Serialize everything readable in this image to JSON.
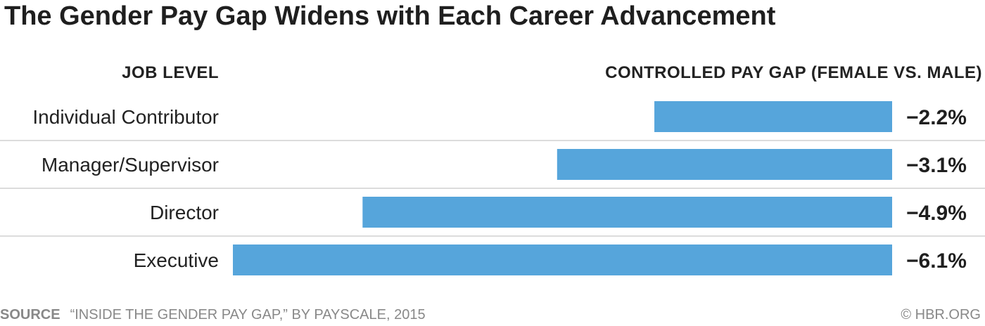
{
  "title": "The Gender Pay Gap Widens with Each Career Advancement",
  "headers": {
    "left": "JOB LEVEL",
    "right": "CONTROLLED PAY GAP (FEMALE VS. MALE)"
  },
  "footer": {
    "source_label": "SOURCE",
    "source_text": "“INSIDE THE GENDER PAY GAP,” BY PAYSCALE, 2015",
    "credit": "© HBR.ORG"
  },
  "colors": {
    "bar": "#56a5db",
    "divider": "#d0d0d0"
  },
  "chart_data": {
    "type": "bar",
    "orientation": "horizontal",
    "title": "The Gender Pay Gap Widens with Each Career Advancement",
    "categories": [
      "Individual Contributor",
      "Manager/Supervisor",
      "Director",
      "Executive"
    ],
    "values": [
      -2.2,
      -3.1,
      -4.9,
      -6.1
    ],
    "data_labels": [
      "−2.2%",
      "−3.1%",
      "−4.9%",
      "−6.1%"
    ],
    "xlabel": "CONTROLLED PAY GAP (FEMALE VS. MALE)",
    "ylabel": "JOB LEVEL",
    "xlim": [
      -6.1,
      0
    ],
    "grid": false,
    "legend": "none"
  }
}
